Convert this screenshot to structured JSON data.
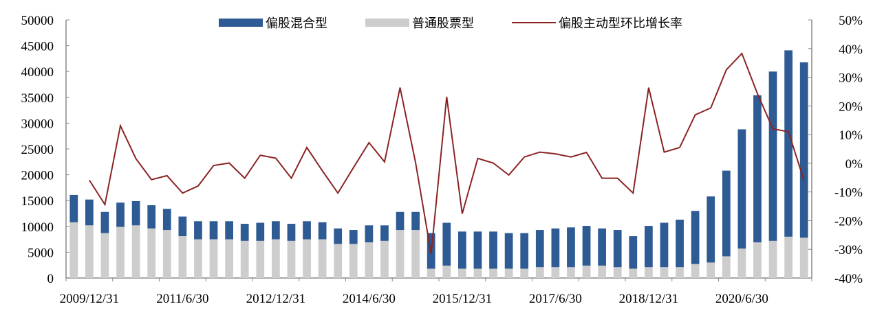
{
  "chart_data": {
    "type": "bar",
    "x_tick_labels": [
      "2009/12/31",
      "2011/6/30",
      "2012/12/31",
      "2014/6/30",
      "2015/12/31",
      "2017/6/30",
      "2018/12/31",
      "2020/6/30"
    ],
    "y_left": {
      "lim": [
        0,
        50000
      ],
      "ticks": [
        0,
        5000,
        10000,
        15000,
        20000,
        25000,
        30000,
        35000,
        40000,
        45000,
        50000
      ]
    },
    "y_right": {
      "lim": [
        -40,
        50
      ],
      "ticks": [
        "-40%",
        "-30%",
        "-20%",
        "-10%",
        "0%",
        "10%",
        "20%",
        "30%",
        "40%",
        "50%"
      ]
    },
    "legend": [
      {
        "name": "偏股混合型",
        "kind": "bar",
        "color": "#2e5b94"
      },
      {
        "name": "普通股票型",
        "kind": "bar",
        "color": "#cdcdcd"
      },
      {
        "name": "偏股主动型环比增长率",
        "kind": "line",
        "color": "#8b2323"
      }
    ],
    "series": [
      {
        "name": "偏股混合型",
        "type": "bar",
        "stacked": true,
        "values": [
          5300,
          5000,
          4100,
          4700,
          4700,
          4500,
          4100,
          3800,
          3500,
          3500,
          3500,
          3300,
          3500,
          3500,
          3300,
          3500,
          3300,
          3000,
          2700,
          3300,
          3000,
          3500,
          3500,
          6900,
          8300,
          7200,
          7200,
          7200,
          6900,
          6900,
          7200,
          7500,
          7700,
          7700,
          7200,
          7200,
          6300,
          8000,
          8600,
          9200,
          10300,
          12800,
          16600,
          23100,
          28500,
          32800,
          36100,
          34000
        ]
      },
      {
        "name": "普通股票型",
        "type": "bar",
        "stacked": true,
        "values": [
          10800,
          10200,
          8700,
          9900,
          10200,
          9600,
          9300,
          8100,
          7500,
          7500,
          7500,
          7200,
          7200,
          7500,
          7200,
          7500,
          7500,
          6600,
          6600,
          6900,
          7200,
          9300,
          9300,
          1800,
          2400,
          1800,
          1800,
          1800,
          1800,
          1800,
          2100,
          2100,
          2100,
          2400,
          2400,
          2100,
          1800,
          2100,
          2100,
          2100,
          2700,
          3000,
          4200,
          5700,
          6900,
          7200,
          8000,
          7800
        ]
      },
      {
        "name": "偏股主动型环比增长率",
        "type": "line",
        "axis": "right",
        "values": [
          null,
          -5.9,
          -14.4,
          13.1,
          1.6,
          -5.7,
          -4.3,
          -10.4,
          -7.9,
          -0.8,
          0.1,
          -5.2,
          2.8,
          1.8,
          -5.2,
          5.5,
          -2.6,
          -10.4,
          -1.5,
          7.2,
          0.5,
          26.4,
          0.2,
          -31.6,
          23.2,
          -17.6,
          1.7,
          0.1,
          -4.1,
          2.2,
          3.9,
          3.3,
          2.2,
          3.8,
          -5.2,
          -5.2,
          -10.4,
          26.4,
          3.9,
          5.5,
          16.9,
          19.3,
          32.6,
          38.3,
          24.3,
          12.0,
          11.0,
          -6.0
        ]
      }
    ]
  }
}
